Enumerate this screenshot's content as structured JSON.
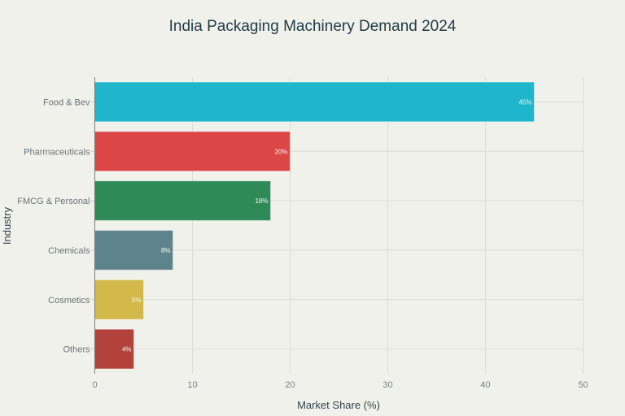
{
  "chart_data": {
    "type": "bar",
    "orientation": "horizontal",
    "title": "India Packaging Machinery Demand 2024",
    "xlabel": "Market Share (%)",
    "ylabel": "Industry",
    "categories": [
      "Food & Bev",
      "Pharmaceuticals",
      "FMCG & Personal",
      "Chemicals",
      "Cosmetics",
      "Others"
    ],
    "values": [
      45,
      20,
      18,
      8,
      5,
      4
    ],
    "data_labels": [
      "45%",
      "20%",
      "18%",
      "8%",
      "5%",
      "4%"
    ],
    "colors": [
      "#1fb5cb",
      "#db4747",
      "#2e8a57",
      "#5e848b",
      "#d2b94a",
      "#b3423c"
    ],
    "xlim": [
      0,
      50
    ],
    "xticks": [
      0,
      10,
      20,
      30,
      40,
      50
    ],
    "xtick_labels": [
      "0",
      "10",
      "20",
      "30",
      "40",
      "50"
    ],
    "grid": true,
    "legend": "none"
  }
}
